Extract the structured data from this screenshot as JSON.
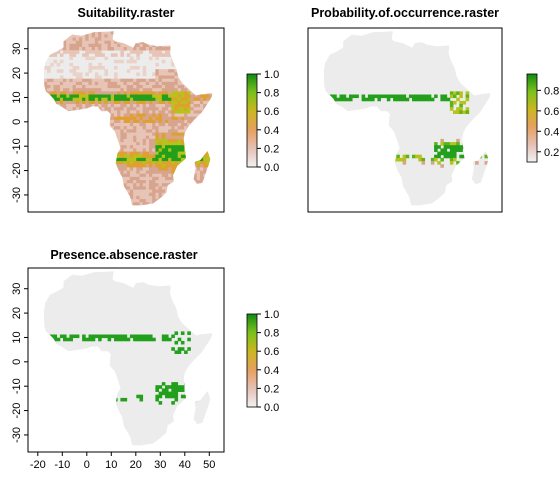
{
  "panels": [
    {
      "id": "suitability",
      "title": "Suitability.raster",
      "y_ticks": [
        "30",
        "20",
        "10",
        "0",
        "-10",
        "-20",
        "-30"
      ],
      "x_ticks": [],
      "legend_ticks": [
        "1.0",
        "0.8",
        "0.6",
        "0.4",
        "0.2",
        "0.0"
      ]
    },
    {
      "id": "probability",
      "title": "Probability.of.occurrence.raster",
      "y_ticks": [],
      "x_ticks": [],
      "legend_ticks": [
        "0.8",
        "0.6",
        "0.4",
        "0.2"
      ]
    },
    {
      "id": "presence",
      "title": "Presence.absence.raster",
      "y_ticks": [
        "30",
        "20",
        "10",
        "0",
        "-10",
        "-20",
        "-30"
      ],
      "x_ticks": [
        "-20",
        "-10",
        "0",
        "10",
        "20",
        "30",
        "40",
        "50"
      ],
      "legend_ticks": [
        "1.0",
        "0.8",
        "0.6",
        "0.4",
        "0.2",
        "0.0"
      ]
    }
  ],
  "colors": {
    "land_background": "#ececec",
    "suitability_low": "#e7c4b6",
    "suitability_mid": "#d7a48e",
    "high_green": "#22a01c",
    "mid_yellow": "#b7c21b",
    "orange": "#e0a030",
    "legend_gradient": [
      "#f2f2f2",
      "#e5c0b4",
      "#e6a060",
      "#c9b720",
      "#7cc11c",
      "#128a10"
    ]
  }
}
